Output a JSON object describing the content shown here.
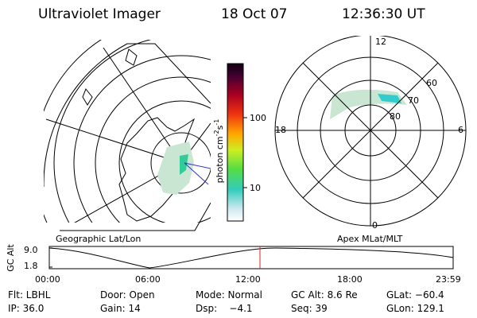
{
  "header": {
    "title": "Ultraviolet Imager",
    "date": "18 Oct 07",
    "time": "12:36:30 UT"
  },
  "geo_panel": {
    "label": "Geographic Lat/Lon"
  },
  "apex_panel": {
    "label": "Apex MLat/MLT",
    "mlt_labels": [
      "12",
      "18",
      "6",
      "0"
    ],
    "mlat_labels": [
      "60",
      "70",
      "80"
    ]
  },
  "colorbar": {
    "unit_label": "photon cm",
    "unit_exp1": "-2",
    "unit_mid": "s",
    "unit_exp2": "-1",
    "ticks": [
      "100",
      "10"
    ]
  },
  "altitude_plot": {
    "ylabel": "GC Alt",
    "yticks": [
      "9.0",
      "1.8"
    ],
    "xticks": [
      "00:00",
      "06:00",
      "12:00",
      "18:00",
      "23:59"
    ],
    "current_marker_color": "#dd2222"
  },
  "info": {
    "flt": "Flt: LBHL",
    "door": "Door: Open",
    "mode": "Mode: Normal",
    "gc_alt": "GC Alt: 8.6 Re",
    "glat": "GLat: −60.4",
    "ip": "IP: 36.0",
    "gain": "Gain: 14",
    "dsp": "Dsp:    −4.1",
    "seq": "Seq: 39",
    "glon": "GLon: 129.1"
  }
}
